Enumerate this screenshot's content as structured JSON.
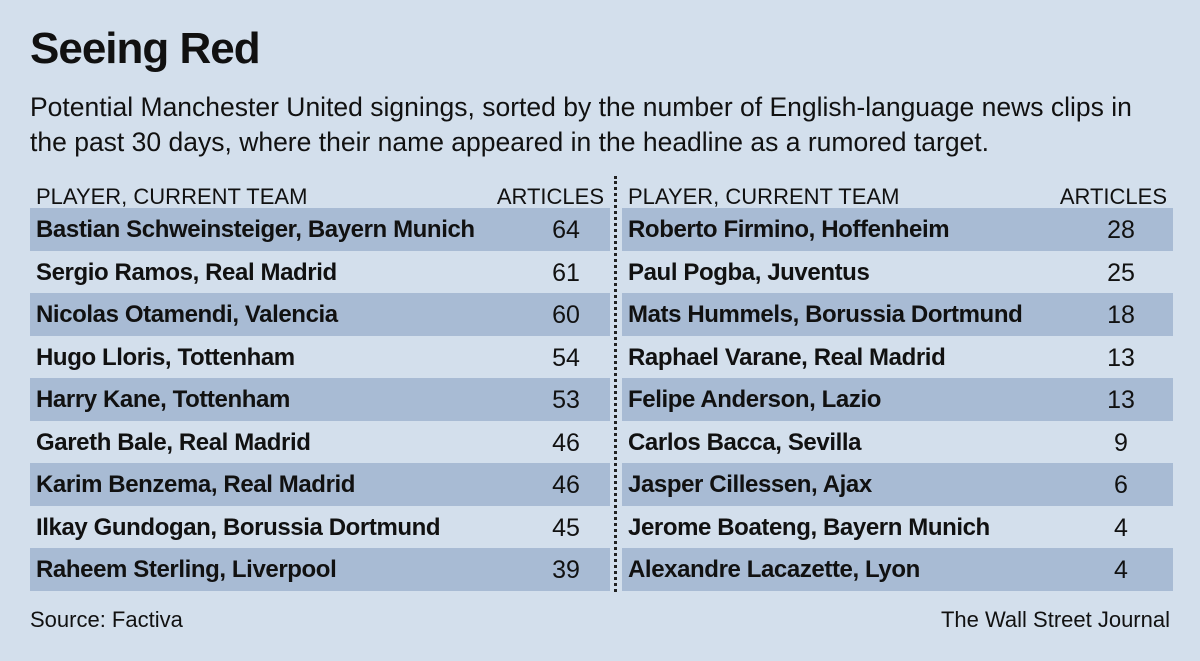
{
  "title": "Seeing Red",
  "subtitle": "Potential Manchester United signings, sorted by the number of English-language news clips in the past 30 days, where their name appeared in the headline as a rumored target.",
  "table": {
    "columns": [
      "PLAYER, CURRENT TEAM",
      "ARTICLES"
    ],
    "left_rows": [
      {
        "player": "Bastian Schweinsteiger, Bayern Munich",
        "articles": "64"
      },
      {
        "player": "Sergio Ramos, Real Madrid",
        "articles": "61"
      },
      {
        "player": "Nicolas Otamendi, Valencia",
        "articles": "60"
      },
      {
        "player": "Hugo Lloris, Tottenham",
        "articles": "54"
      },
      {
        "player": "Harry Kane, Tottenham",
        "articles": "53"
      },
      {
        "player": "Gareth Bale, Real Madrid",
        "articles": "46"
      },
      {
        "player": "Karim Benzema, Real Madrid",
        "articles": "46"
      },
      {
        "player": "Ilkay Gundogan, Borussia Dortmund",
        "articles": "45"
      },
      {
        "player": "Raheem Sterling, Liverpool",
        "articles": "39"
      }
    ],
    "right_rows": [
      {
        "player": "Roberto Firmino, Hoffenheim",
        "articles": "28"
      },
      {
        "player": "Paul Pogba, Juventus",
        "articles": "25"
      },
      {
        "player": "Mats Hummels, Borussia Dortmund",
        "articles": "18"
      },
      {
        "player": "Raphael Varane, Real Madrid",
        "articles": "13"
      },
      {
        "player": "Felipe Anderson, Lazio",
        "articles": "13"
      },
      {
        "player": "Carlos Bacca, Sevilla",
        "articles": "9"
      },
      {
        "player": "Jasper Cillessen, Ajax",
        "articles": "6"
      },
      {
        "player": "Jerome Boateng, Bayern Munich",
        "articles": "4"
      },
      {
        "player": "Alexandre Lacazette, Lyon",
        "articles": "4"
      }
    ]
  },
  "source": "Source: Factiva",
  "credit": "The Wall Street Journal",
  "colors": {
    "background": "#d3dfec",
    "row_shade": "#a8bbd4",
    "text": "#111111"
  }
}
